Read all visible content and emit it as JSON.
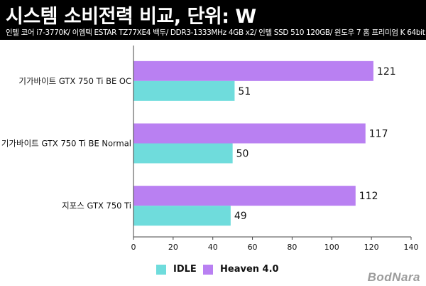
{
  "header": {
    "title": "시스템 소비전력 비교, 단위: W",
    "subtitle": "인텔 코어 i7-3770K/ 이엠텍 ESTAR TZ77XE4 백두/ DDR3-1333MHz 4GB x2/ 인텔 SSD 510 120GB/ 윈도우 7 홈 프리미엄 K 64bit"
  },
  "colors": {
    "idle": "#6fdcdc",
    "heaven": "#b980f2",
    "header_bg": "#000000"
  },
  "chart_data": {
    "type": "bar",
    "orientation": "horizontal",
    "title": "시스템 소비전력 비교, 단위: W",
    "categories": [
      "기가바이트 GTX 750 Ti BE OC",
      "기가바이트 GTX 750 Ti BE Normal",
      "지포스 GTX 750 Ti"
    ],
    "series": [
      {
        "name": "Heaven 4.0",
        "values": [
          121,
          117,
          112
        ]
      },
      {
        "name": "IDLE",
        "values": [
          51,
          50,
          49
        ]
      }
    ],
    "xlim": [
      0,
      140
    ],
    "xticks": [
      0,
      20,
      40,
      60,
      80,
      100,
      120,
      140
    ],
    "grid": false,
    "legend_position": "bottom"
  },
  "legend": [
    {
      "label": "IDLE",
      "series": "IDLE"
    },
    {
      "label": "Heaven 4.0",
      "series": "Heaven 4.0"
    }
  ],
  "watermark": "BodNara"
}
